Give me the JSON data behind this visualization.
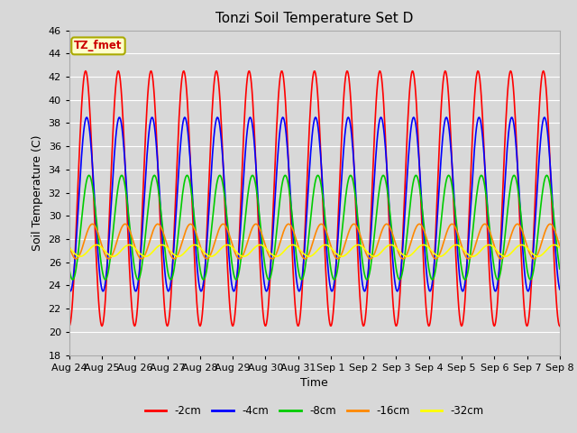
{
  "title": "Tonzi Soil Temperature Set D",
  "xlabel": "Time",
  "ylabel": "Soil Temperature (C)",
  "ylim": [
    18,
    46
  ],
  "yticks": [
    18,
    20,
    22,
    24,
    26,
    28,
    30,
    32,
    34,
    36,
    38,
    40,
    42,
    44,
    46
  ],
  "bg_color": "#d8d8d8",
  "plot_bg_color": "#d8d8d8",
  "grid_color": "white",
  "legend_label": "TZ_fmet",
  "legend_box_color": "#ffffcc",
  "legend_box_edge": "#aaaa00",
  "series_colors": [
    "#ff0000",
    "#0000ff",
    "#00cc00",
    "#ff8800",
    "#ffff00"
  ],
  "series_labels": [
    "-2cm",
    "-4cm",
    "-8cm",
    "-16cm",
    "-32cm"
  ],
  "x_tick_labels": [
    "Aug 24",
    "Aug 25",
    "Aug 26",
    "Aug 27",
    "Aug 28",
    "Aug 29",
    "Aug 30",
    "Aug 31",
    "Sep 1",
    "Sep 2",
    "Sep 3",
    "Sep 4",
    "Sep 5",
    "Sep 6",
    "Sep 7",
    "Sep 8"
  ],
  "n_days": 15,
  "points_per_day": 48,
  "mean_2cm": 31.5,
  "amp_2cm": 11.0,
  "phase_2cm": 0.0,
  "mean_4cm": 31.0,
  "amp_4cm": 7.5,
  "phase_4cm": 0.8,
  "mean_8cm": 29.0,
  "amp_8cm": 4.5,
  "phase_8cm": 2.5,
  "mean_16cm": 27.8,
  "amp_16cm": 1.5,
  "phase_16cm": 5.0,
  "mean_32cm": 27.0,
  "amp_32cm": 0.5,
  "phase_32cm": 8.0
}
